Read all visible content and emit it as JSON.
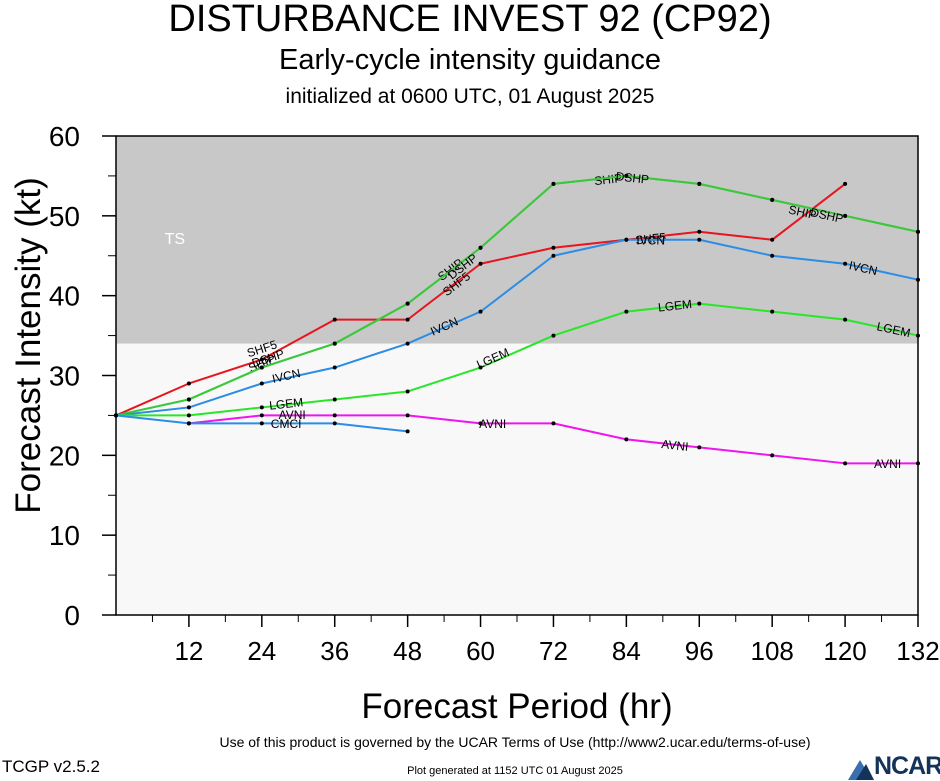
{
  "header": {
    "title": "DISTURBANCE INVEST 92 (CP92)",
    "subtitle": "Early-cycle intensity guidance",
    "init": "initialized at 0600 UTC, 01 August 2025"
  },
  "footer": {
    "terms": "Use of this product is governed by the UCAR Terms of Use (http://www2.ucar.edu/terms-of-use)",
    "version": "TCGP v2.5.2",
    "generated": "Plot generated at 1152 UTC   01 August 2025",
    "logo": "NCAR"
  },
  "colors": {
    "ts_band": "#c8c8c8",
    "plot_bg": "#f8f8f8",
    "red": "#e8141e",
    "blue": "#2c8ce6",
    "green": "#3cc83c",
    "bright_green": "#28e628",
    "magenta": "#f014f0"
  },
  "chart_data": {
    "type": "line",
    "xlabel": "Forecast Period (hr)",
    "ylabel": "Forecast Intensity (kt)",
    "xlim": [
      0,
      132
    ],
    "ylim": [
      0,
      60
    ],
    "xticks": [
      12,
      24,
      36,
      48,
      60,
      72,
      84,
      96,
      108,
      120,
      132
    ],
    "yticks": [
      0,
      10,
      20,
      30,
      40,
      50,
      60
    ],
    "grid": false,
    "band": {
      "label": "TS",
      "from": 34,
      "to": 60
    },
    "series": [
      {
        "name": "SHF5",
        "color": "#e8141e",
        "x": [
          0,
          12,
          24,
          36,
          48,
          60,
          72,
          84,
          96,
          108,
          120
        ],
        "y": [
          25,
          29,
          32,
          37,
          37,
          44,
          46,
          47,
          48,
          47,
          54
        ],
        "labels": [
          [
            24,
            33.4
          ],
          [
            56,
            41.5
          ],
          [
            88,
            47.2
          ]
        ]
      },
      {
        "name": "SHIP",
        "color": "#3cc83c",
        "x": [
          0,
          12,
          24,
          36,
          48,
          60,
          72,
          84,
          96,
          108,
          120,
          132
        ],
        "y": [
          25,
          27,
          31,
          34,
          39,
          46,
          54,
          55,
          54,
          52,
          50,
          48
        ],
        "labels": [
          [
            24,
            31.6
          ],
          [
            55,
            43.3
          ],
          [
            81,
            54.6
          ],
          [
            113,
            50.5
          ]
        ]
      },
      {
        "name": "DSHP",
        "color": "#3cc83c",
        "x": [
          0,
          12,
          24,
          36,
          48,
          60,
          72,
          84,
          96,
          108,
          120,
          132
        ],
        "y": [
          25,
          27,
          31,
          34,
          39,
          46,
          54,
          55,
          54,
          52,
          50,
          48
        ],
        "labels": [
          [
            25,
            32.2
          ],
          [
            57,
            43.7
          ],
          [
            85,
            54.8
          ],
          [
            117,
            50.1
          ]
        ]
      },
      {
        "name": "IVCN",
        "color": "#2c8ce6",
        "x": [
          0,
          12,
          24,
          36,
          48,
          60,
          72,
          84,
          96,
          108,
          120,
          132
        ],
        "y": [
          25,
          26,
          29,
          31,
          34,
          38,
          45,
          47,
          47,
          45,
          44,
          42
        ],
        "labels": [
          [
            28,
            30
          ],
          [
            54,
            36.2
          ],
          [
            88,
            47
          ],
          [
            123,
            43.5
          ]
        ]
      },
      {
        "name": "LGEM",
        "color": "#28e628",
        "x": [
          0,
          12,
          24,
          36,
          48,
          60,
          72,
          84,
          96,
          108,
          120,
          132
        ],
        "y": [
          25,
          25,
          26,
          27,
          28,
          31,
          35,
          38,
          39,
          38,
          37,
          35
        ],
        "labels": [
          [
            28,
            26.5
          ],
          [
            62,
            32.2
          ],
          [
            92,
            38.8
          ],
          [
            128,
            35.8
          ]
        ]
      },
      {
        "name": "AVNI",
        "color": "#f014f0",
        "x": [
          12,
          24,
          36,
          48,
          60,
          72,
          84,
          96,
          108,
          120,
          132
        ],
        "y": [
          24,
          25,
          25,
          25,
          24,
          24,
          22,
          21,
          20,
          19,
          19
        ],
        "labels": [
          [
            29,
            25.1
          ],
          [
            62,
            24
          ],
          [
            92,
            21.3
          ],
          [
            127,
            19
          ]
        ]
      },
      {
        "name": "CMCI",
        "color": "#2c8ce6",
        "x": [
          0,
          12,
          24,
          36,
          48
        ],
        "y": [
          25,
          24,
          24,
          24,
          23
        ],
        "labels": [
          [
            28,
            24
          ]
        ]
      }
    ]
  }
}
